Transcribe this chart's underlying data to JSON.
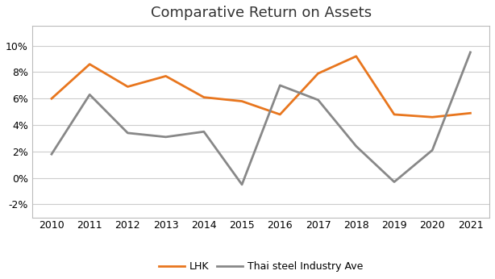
{
  "title": "Comparative Return on Assets",
  "years": [
    2010,
    2011,
    2012,
    2013,
    2014,
    2015,
    2016,
    2017,
    2018,
    2019,
    2020,
    2021
  ],
  "lhk": [
    0.06,
    0.086,
    0.069,
    0.077,
    0.061,
    0.058,
    0.048,
    0.079,
    0.092,
    0.048,
    0.046,
    0.049
  ],
  "thai_steel": [
    0.018,
    0.063,
    0.034,
    0.031,
    0.035,
    -0.005,
    0.07,
    0.059,
    0.024,
    -0.003,
    0.021,
    0.095
  ],
  "lhk_color": "#E8761E",
  "thai_steel_color": "#888888",
  "lhk_label": "LHK",
  "thai_steel_label": "Thai steel Industry Ave",
  "ylim": [
    -0.03,
    0.115
  ],
  "yticks": [
    -0.02,
    0.0,
    0.02,
    0.04,
    0.06,
    0.08,
    0.1
  ],
  "background_color": "#ffffff",
  "grid_color": "#cccccc",
  "title_fontsize": 13,
  "axis_fontsize": 9,
  "legend_fontsize": 9,
  "linewidth": 2.0,
  "spine_color": "#bbbbbb"
}
